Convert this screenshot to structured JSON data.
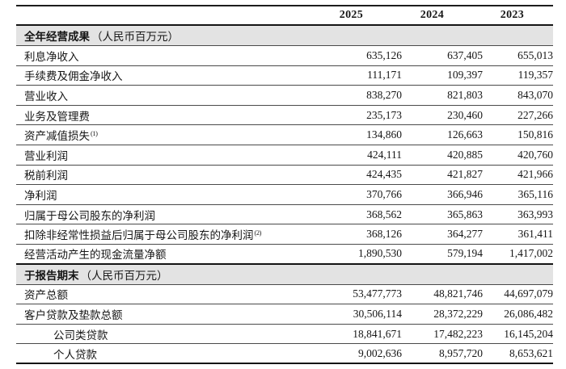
{
  "table": {
    "columns": [
      "2025",
      "2024",
      "2023"
    ],
    "sections": [
      {
        "title": "全年经营成果",
        "suffix": "（人民币百万元）",
        "rows": [
          {
            "label": "利息净收入",
            "values": [
              "635,126",
              "637,405",
              "655,013"
            ]
          },
          {
            "label": "手续费及佣金净收入",
            "values": [
              "111,171",
              "109,397",
              "119,357"
            ]
          },
          {
            "label": "营业收入",
            "values": [
              "838,270",
              "821,803",
              "843,070"
            ]
          },
          {
            "label": "业务及管理费",
            "values": [
              "235,173",
              "230,460",
              "227,266"
            ]
          },
          {
            "label": "资产减值损失",
            "footnote": "(1)",
            "values": [
              "134,860",
              "126,663",
              "150,816"
            ]
          },
          {
            "label": "营业利润",
            "values": [
              "424,111",
              "420,885",
              "420,760"
            ]
          },
          {
            "label": "税前利润",
            "values": [
              "424,435",
              "421,827",
              "421,966"
            ]
          },
          {
            "label": "净利润",
            "values": [
              "370,766",
              "366,946",
              "365,116"
            ]
          },
          {
            "label": "归属于母公司股东的净利润",
            "values": [
              "368,562",
              "365,863",
              "363,993"
            ]
          },
          {
            "label": "扣除非经常性损益后归属于母公司股东的净利润",
            "footnote": "(2)",
            "values": [
              "368,126",
              "364,277",
              "361,411"
            ]
          },
          {
            "label": "经营活动产生的现金流量净额",
            "values": [
              "1,890,530",
              "579,194",
              "1,417,002"
            ]
          }
        ]
      },
      {
        "title": "于报告期末",
        "suffix": "（人民币百万元）",
        "rows": [
          {
            "label": "资产总额",
            "values": [
              "53,477,773",
              "48,821,746",
              "44,697,079"
            ]
          },
          {
            "label": "客户贷款及垫款总额",
            "values": [
              "30,506,114",
              "28,372,229",
              "26,086,482"
            ]
          },
          {
            "label": "公司类贷款",
            "indent": true,
            "values": [
              "18,841,671",
              "17,482,223",
              "16,145,204"
            ]
          },
          {
            "label": "个人贷款",
            "indent": true,
            "values": [
              "9,002,636",
              "8,957,720",
              "8,653,621"
            ]
          }
        ]
      }
    ]
  }
}
